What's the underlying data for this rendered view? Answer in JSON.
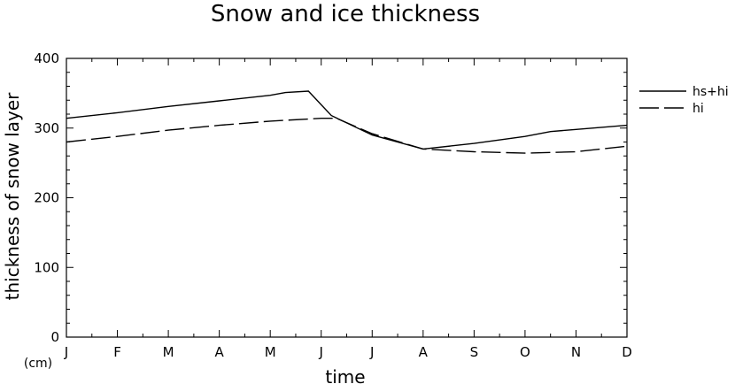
{
  "chart_data": {
    "type": "line",
    "title": "Snow and ice thickness",
    "xlabel": "time",
    "ylabel": "thickness of snow layer",
    "yunit": "(cm)",
    "ylim": [
      0,
      400
    ],
    "yticks": [
      0,
      100,
      200,
      300,
      400
    ],
    "xlim": [
      0,
      11
    ],
    "xticks": [
      "J",
      "F",
      "M",
      "A",
      "M",
      "J",
      "J",
      "A",
      "S",
      "O",
      "N",
      "D"
    ],
    "grid": false,
    "legend_position": "right",
    "series": [
      {
        "name": "hs+hi",
        "style": "solid",
        "x": [
          0,
          1,
          2,
          3,
          4,
          4.3,
          4.75,
          5.2,
          6,
          7,
          8,
          9,
          9.5,
          10,
          11
        ],
        "y": [
          314,
          322,
          331,
          339,
          347,
          351,
          353,
          318,
          290,
          270,
          278,
          288,
          295,
          298,
          304
        ]
      },
      {
        "name": "hi",
        "style": "dashed",
        "x": [
          0,
          1,
          2,
          3,
          4,
          5,
          5.3,
          6,
          7,
          8,
          9,
          10,
          11
        ],
        "y": [
          280,
          288,
          297,
          304,
          310,
          314,
          314,
          292,
          270,
          266,
          264,
          266,
          274
        ]
      }
    ]
  }
}
